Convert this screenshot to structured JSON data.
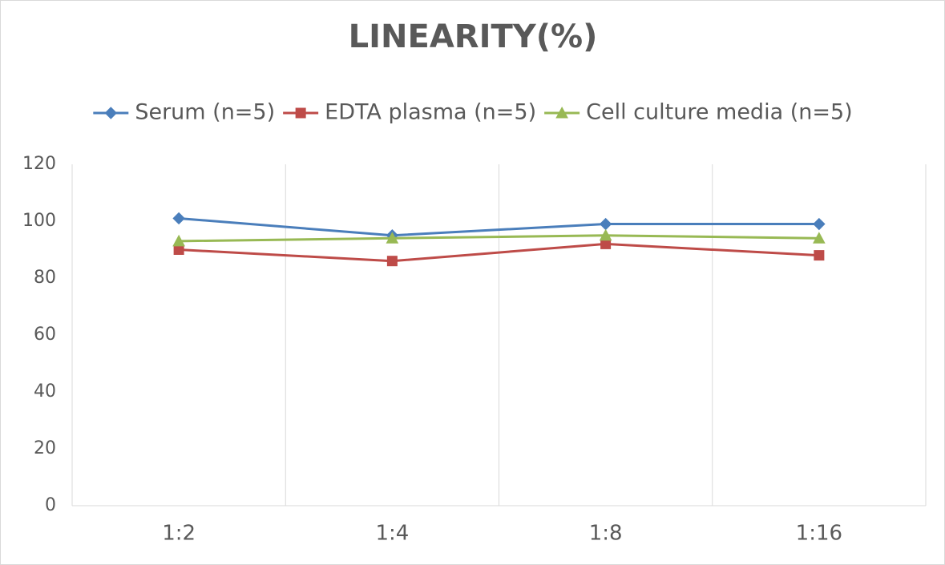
{
  "chart_data": {
    "type": "line",
    "title": "LINEARITY(%)",
    "categories": [
      "1:2",
      "1:4",
      "1:8",
      "1:16"
    ],
    "series": [
      {
        "name": "Serum (n=5)",
        "color": "#4a7ebb",
        "marker": "diamond",
        "values": [
          101,
          95,
          99,
          99
        ]
      },
      {
        "name": "EDTA plasma (n=5)",
        "color": "#be4b48",
        "marker": "square",
        "values": [
          90,
          86,
          92,
          88
        ]
      },
      {
        "name": "Cell culture media (n=5)",
        "color": "#98b954",
        "marker": "triangle",
        "values": [
          93,
          94,
          95,
          94
        ]
      }
    ],
    "ylim": [
      0,
      120
    ],
    "yticks": [
      0,
      20,
      40,
      60,
      80,
      100,
      120
    ],
    "grid": "vertical",
    "legend": "top"
  }
}
